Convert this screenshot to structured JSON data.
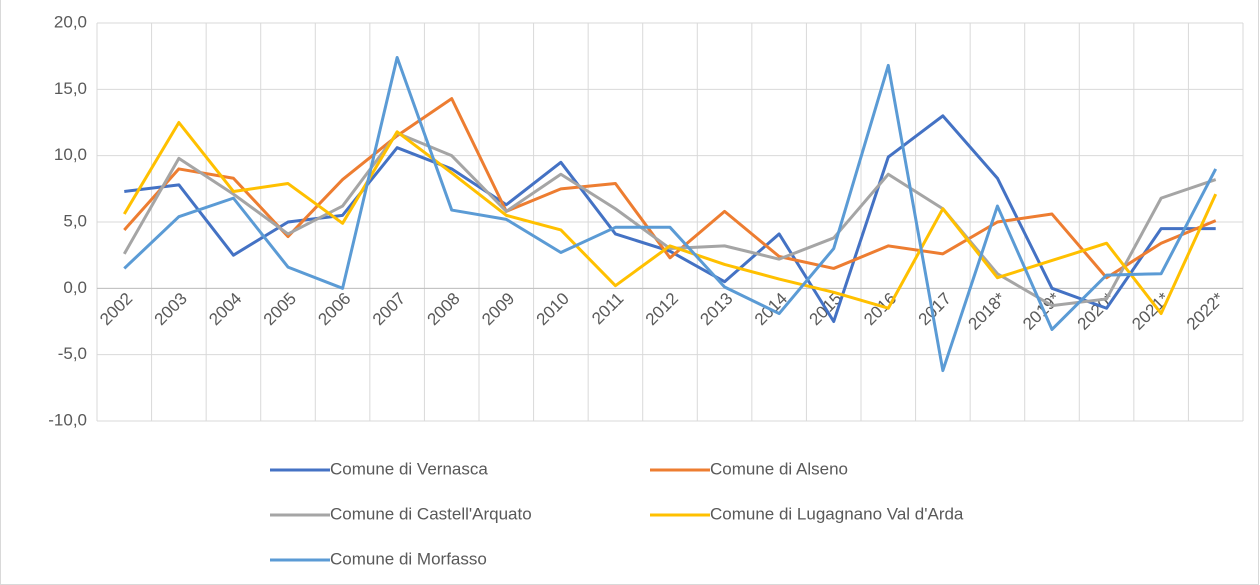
{
  "chart_data": {
    "type": "line",
    "categories": [
      "2002",
      "2003",
      "2004",
      "2005",
      "2006",
      "2007",
      "2008",
      "2009",
      "2010",
      "2011",
      "2012",
      "2013",
      "2014",
      "2015",
      "2016",
      "2017",
      "2018*",
      "2019*",
      "2020*",
      "2021*",
      "2022*"
    ],
    "series": [
      {
        "name": "Comune di Vernasca",
        "color": "#4472c4",
        "values": [
          7.3,
          7.8,
          2.5,
          5.0,
          5.5,
          10.6,
          9.0,
          6.3,
          9.5,
          4.1,
          2.8,
          0.5,
          4.1,
          -2.5,
          9.9,
          13.0,
          8.3,
          0.0,
          -1.5,
          4.5,
          4.5
        ]
      },
      {
        "name": "Comune di Alseno",
        "color": "#ed7d31",
        "values": [
          4.4,
          9.0,
          8.3,
          3.9,
          8.2,
          11.5,
          14.3,
          5.8,
          7.5,
          7.9,
          2.3,
          5.8,
          2.4,
          1.5,
          3.2,
          2.6,
          5.0,
          5.6,
          0.8,
          3.4,
          5.1
        ]
      },
      {
        "name": "Comune di Castell'Arquato",
        "color": "#a5a5a5",
        "values": [
          2.6,
          9.8,
          7.1,
          4.1,
          6.2,
          11.7,
          10.0,
          5.8,
          8.6,
          6.0,
          3.0,
          3.2,
          2.2,
          3.8,
          8.6,
          6.0,
          1.1,
          -1.3,
          -0.8,
          6.8,
          8.2
        ]
      },
      {
        "name": "Comune di Lugagnano Val d'Arda",
        "color": "#ffc000",
        "values": [
          5.6,
          12.5,
          7.3,
          7.9,
          4.9,
          11.8,
          8.7,
          5.5,
          4.4,
          0.2,
          3.2,
          1.8,
          0.7,
          -0.3,
          -1.5,
          6.0,
          0.8,
          2.1,
          3.4,
          -1.9,
          7.1
        ]
      },
      {
        "name": "Comune di Morfasso",
        "color": "#5b9bd5",
        "values": [
          1.5,
          5.4,
          6.8,
          1.6,
          0.0,
          17.4,
          5.9,
          5.2,
          2.7,
          4.6,
          4.6,
          0.1,
          -1.9,
          3.0,
          16.8,
          -6.2,
          6.2,
          -3.1,
          1.0,
          1.1,
          9.0
        ]
      }
    ],
    "ylim": [
      -10,
      20
    ],
    "yticks": [
      {
        "value": -10,
        "label": "-10,0"
      },
      {
        "value": -5,
        "label": "-5,0"
      },
      {
        "value": 0,
        "label": "0,0"
      },
      {
        "value": 5,
        "label": "5,0"
      },
      {
        "value": 10,
        "label": "10,0"
      },
      {
        "value": 15,
        "label": "15,0"
      },
      {
        "value": 20,
        "label": "20,0"
      }
    ],
    "grid": true
  }
}
